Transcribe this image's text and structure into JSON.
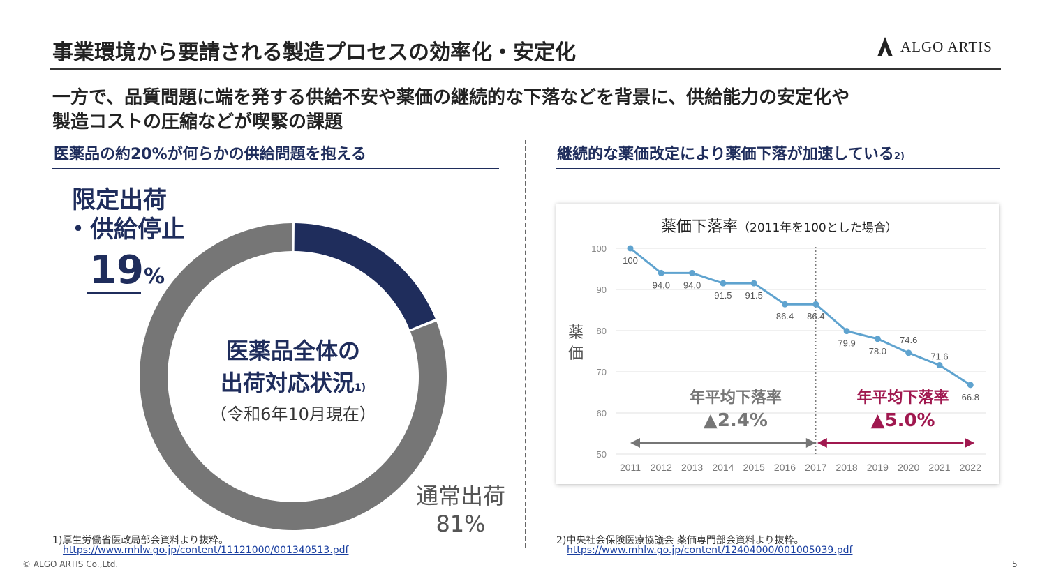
{
  "header": {
    "title": "事業環境から要請される製造プロセスの効率化・安定化",
    "logo_text": "ALGO ARTIS"
  },
  "headline": {
    "line1": "一方で、品質問題に端を発する供給不安や薬価の継続的な下落などを背景に、供給能力の安定化や",
    "line2": "製造コストの圧縮などが喫緊の課題"
  },
  "left_panel": {
    "subtitle": "医薬品の約20%が何らかの供給問題を抱える",
    "limited_label_line1": "限定出荷",
    "limited_label_line2": "・供給停止",
    "limited_value": "19",
    "limited_unit": "%",
    "center_line1": "医薬品全体の",
    "center_line2": "出荷対応状況",
    "center_note_mark": "1)",
    "center_line3": "（令和6年10月現在）",
    "normal_label": "通常出荷",
    "normal_value": "81%",
    "footnote": "1)厚生労働省医政局部会資料より抜粋。",
    "footnote_link": "https://www.mhlw.go.jp/content/11121000/001340513.pdf"
  },
  "right_panel": {
    "subtitle": "継続的な薬価改定により薬価下落が加速している",
    "subtitle_note_mark": "2)",
    "footnote": "2)中央社会保険医療協議会 薬価専門部会資料より抜粋。",
    "footnote_link": "https://www.mhlw.go.jp/content/12404000/001005039.pdf"
  },
  "footer": {
    "copyright": "© ALGO ARTIS  Co.,Ltd.",
    "page_number": "5"
  },
  "chart_data": [
    {
      "type": "pie",
      "style": "donut",
      "categories": [
        "限定出荷・供給停止",
        "通常出荷"
      ],
      "values": [
        19,
        81
      ],
      "colors": [
        "#1f2d5c",
        "#767676"
      ]
    },
    {
      "type": "line",
      "title": "薬価下落率",
      "title_note": "（2011年を100とした場合）",
      "ylabel": "薬価",
      "x": [
        "2011",
        "2012",
        "2013",
        "2014",
        "2015",
        "2016",
        "2017",
        "2018",
        "2019",
        "2020",
        "2021",
        "2022"
      ],
      "y": [
        100,
        94.0,
        94.0,
        91.5,
        91.5,
        86.4,
        86.4,
        79.9,
        78.0,
        74.6,
        71.6,
        66.8
      ],
      "data_labels": [
        "100",
        "94.0",
        "94.0",
        "91.5",
        "91.5",
        "86.4",
        "86.4",
        "79.9",
        "78.0",
        "74.6",
        "71.6",
        "66.8"
      ],
      "ylim": [
        50,
        100
      ],
      "yticks": [
        "50",
        "60",
        "70",
        "80",
        "90",
        "100"
      ],
      "grid": true,
      "line_color": "#5fa3cf",
      "divider_year": "2017",
      "annotations": [
        {
          "label": "年平均下落率",
          "value": "▲2.4%",
          "from": "2011",
          "to": "2017",
          "color": "#767676"
        },
        {
          "label": "年平均下落率",
          "value": "▲5.0%",
          "from": "2017",
          "to": "2022",
          "color": "#a0184f"
        }
      ]
    }
  ]
}
